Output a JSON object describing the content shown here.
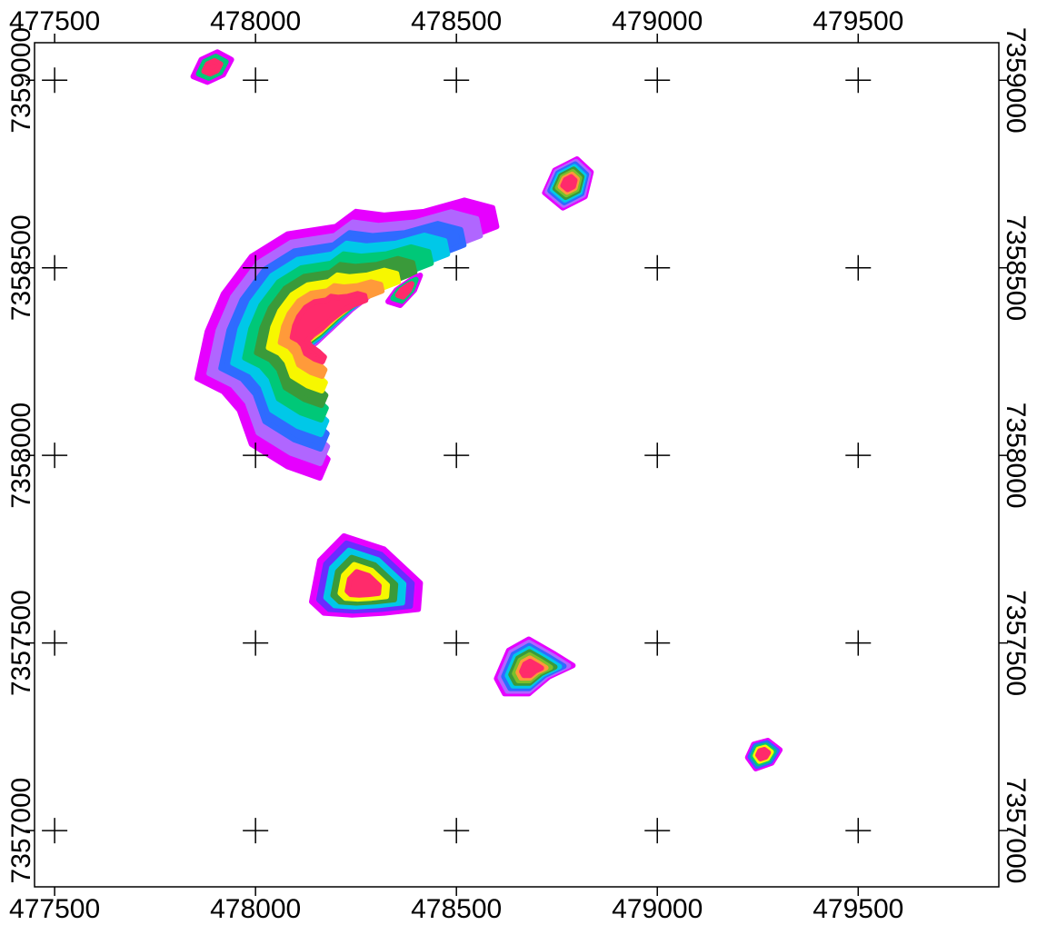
{
  "map": {
    "bounds": {
      "easting": [
        477450,
        479850
      ],
      "northing": [
        7356850,
        7359100
      ]
    },
    "grid_spacing": 500,
    "grid_marks": "crosses",
    "colors": {
      "frame": "#000000",
      "background": "#ffffff",
      "ramp": [
        "#e600ff",
        "#b066ff",
        "#6a2cff",
        "#2f6bff",
        "#00c8e8",
        "#00c878",
        "#3a9a3a",
        "#7bbf2a",
        "#f7f700",
        "#ff9a3a",
        "#ff2b6b"
      ]
    },
    "x_ticks": [
      {
        "value": 477500,
        "label": "477500"
      },
      {
        "value": 478000,
        "label": "478000"
      },
      {
        "value": 478500,
        "label": "478500"
      },
      {
        "value": 479000,
        "label": "479000"
      },
      {
        "value": 479500,
        "label": "479500"
      }
    ],
    "y_ticks": [
      {
        "value": 7359000,
        "label": "7359000"
      },
      {
        "value": 7358500,
        "label": "7358500"
      },
      {
        "value": 7358000,
        "label": "7358000"
      },
      {
        "value": 7357500,
        "label": "7357500"
      },
      {
        "value": 7357000,
        "label": "7357000"
      }
    ],
    "anomalies": [
      {
        "name": "main-arc",
        "levels": 9,
        "outline": [
          [
            477855,
            7358205
          ],
          [
            477880,
            7358330
          ],
          [
            477920,
            7358430
          ],
          [
            477990,
            7358530
          ],
          [
            478080,
            7358590
          ],
          [
            478200,
            7358610
          ],
          [
            478250,
            7358650
          ],
          [
            478320,
            7358640
          ],
          [
            478420,
            7358650
          ],
          [
            478520,
            7358680
          ],
          [
            478590,
            7358660
          ],
          [
            478600,
            7358610
          ],
          [
            478480,
            7358560
          ],
          [
            478360,
            7358490
          ],
          [
            478240,
            7358390
          ],
          [
            478150,
            7358300
          ],
          [
            478060,
            7358230
          ],
          [
            478010,
            7358170
          ],
          [
            478040,
            7358110
          ],
          [
            478120,
            7358050
          ],
          [
            478180,
            7357990
          ],
          [
            478160,
            7357940
          ],
          [
            478080,
            7357970
          ],
          [
            477990,
            7358030
          ],
          [
            477960,
            7358120
          ],
          [
            477920,
            7358170
          ]
        ]
      },
      {
        "name": "north-blob",
        "levels": 3,
        "outline": [
          [
            477845,
            7359010
          ],
          [
            477865,
            7359055
          ],
          [
            477905,
            7359075
          ],
          [
            477940,
            7359055
          ],
          [
            477920,
            7359015
          ],
          [
            477880,
            7358995
          ]
        ]
      },
      {
        "name": "northeast-blob",
        "levels": 8,
        "outline": [
          [
            478720,
            7358700
          ],
          [
            478745,
            7358760
          ],
          [
            478800,
            7358790
          ],
          [
            478835,
            7358755
          ],
          [
            478820,
            7358690
          ],
          [
            478765,
            7358660
          ]
        ]
      },
      {
        "name": "central-blob",
        "levels": 6,
        "outline": [
          [
            478140,
            7357610
          ],
          [
            478160,
            7357720
          ],
          [
            478220,
            7357785
          ],
          [
            478320,
            7357750
          ],
          [
            478410,
            7357660
          ],
          [
            478405,
            7357590
          ],
          [
            478320,
            7357580
          ],
          [
            478240,
            7357575
          ],
          [
            478170,
            7357580
          ]
        ]
      },
      {
        "name": "south-blob",
        "levels": 8,
        "outline": [
          [
            478600,
            7357405
          ],
          [
            478630,
            7357480
          ],
          [
            478680,
            7357510
          ],
          [
            478745,
            7357470
          ],
          [
            478790,
            7357440
          ],
          [
            478730,
            7357410
          ],
          [
            478680,
            7357365
          ],
          [
            478620,
            7357365
          ]
        ]
      },
      {
        "name": "southeast-blob",
        "levels": 5,
        "outline": [
          [
            479225,
            7357195
          ],
          [
            479240,
            7357230
          ],
          [
            479275,
            7357240
          ],
          [
            479305,
            7357215
          ],
          [
            479285,
            7357180
          ],
          [
            479245,
            7357165
          ]
        ]
      },
      {
        "name": "finger",
        "levels": 3,
        "outline": [
          [
            478330,
            7358410
          ],
          [
            478350,
            7358440
          ],
          [
            478390,
            7358470
          ],
          [
            478410,
            7358480
          ],
          [
            478395,
            7358440
          ],
          [
            478360,
            7358400
          ]
        ]
      }
    ]
  }
}
